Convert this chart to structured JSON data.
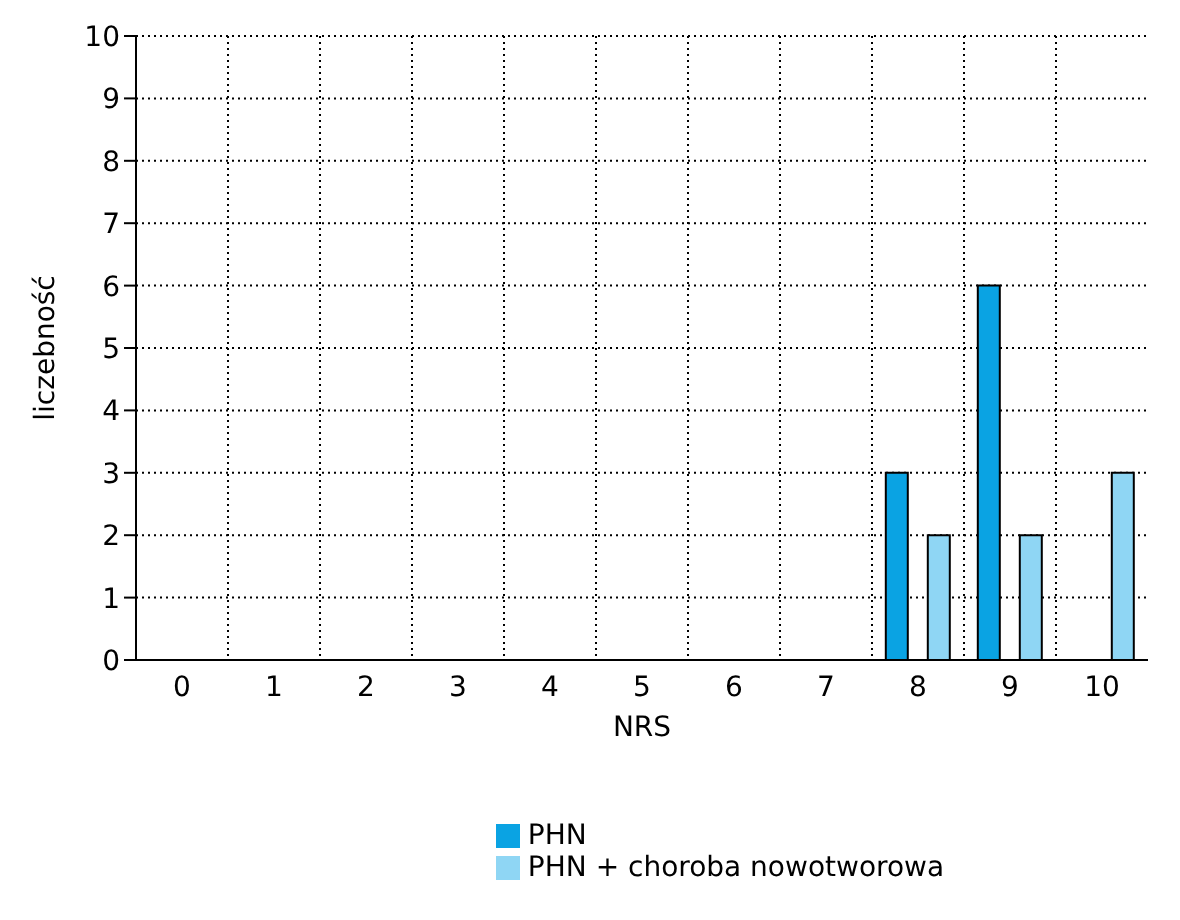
{
  "chart_data": {
    "type": "bar",
    "xlabel": "NRS",
    "ylabel": "liczebność",
    "categories": [
      "0",
      "1",
      "2",
      "3",
      "4",
      "5",
      "6",
      "7",
      "8",
      "9",
      "10"
    ],
    "series": [
      {
        "name": "PHN",
        "color": "#0aa3e3",
        "values": [
          0,
          0,
          0,
          0,
          0,
          0,
          0,
          0,
          3,
          6,
          0
        ]
      },
      {
        "name": "PHN + choroba nowotworowa",
        "color": "#8fd6f4",
        "values": [
          0,
          0,
          0,
          0,
          0,
          0,
          0,
          0,
          2,
          2,
          3
        ]
      }
    ],
    "ylim": [
      0,
      10
    ],
    "yticks": [
      0,
      1,
      2,
      3,
      4,
      5,
      6,
      7,
      8,
      9,
      10
    ],
    "grid": true,
    "legend": "bottom"
  }
}
